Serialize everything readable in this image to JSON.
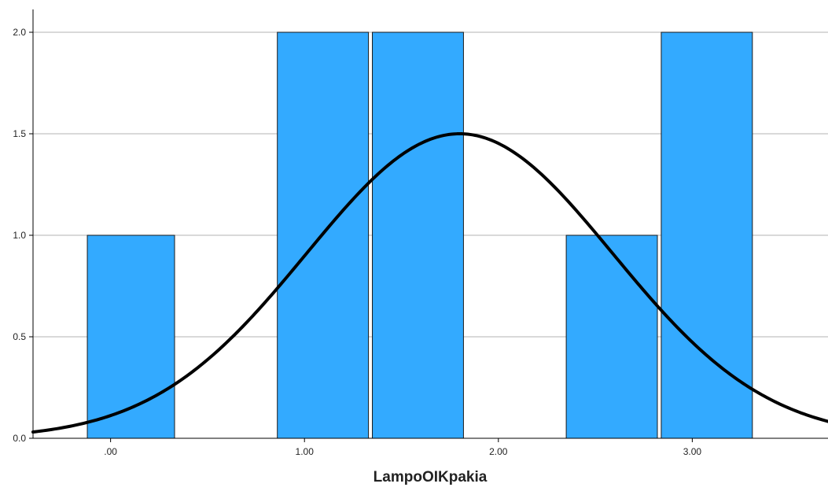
{
  "chart_data": {
    "type": "bar",
    "title": "",
    "xlabel": "LampoOIKpakia",
    "ylabel": "",
    "x_range": [
      -0.4,
      3.7
    ],
    "ylim": [
      0,
      2.0
    ],
    "y_ticks": [
      0.0,
      0.5,
      1.0,
      1.5,
      2.0
    ],
    "y_tick_labels": [
      "0.0",
      "0.5",
      "1.0",
      "1.5",
      "2.0"
    ],
    "x_ticks": [
      0,
      1,
      2,
      3
    ],
    "x_tick_labels": [
      ".00",
      "1.00",
      "2.00",
      "3.00"
    ],
    "bars": [
      {
        "x0": -0.12,
        "x1": 0.33,
        "count": 1
      },
      {
        "x0": 0.86,
        "x1": 1.33,
        "count": 2
      },
      {
        "x0": 1.35,
        "x1": 1.82,
        "count": 2
      },
      {
        "x0": 2.35,
        "x1": 2.82,
        "count": 1
      },
      {
        "x0": 2.84,
        "x1": 3.31,
        "count": 2
      }
    ],
    "normal_curve": {
      "mean": 1.8,
      "sd": 0.79,
      "peak": 1.5
    },
    "grid": "horizontal",
    "colors": {
      "bar_fill": "#33aaff",
      "bar_stroke": "#1a1a1a",
      "curve": "#000000",
      "grid": "#b3b3b3",
      "axis": "#000000"
    }
  }
}
